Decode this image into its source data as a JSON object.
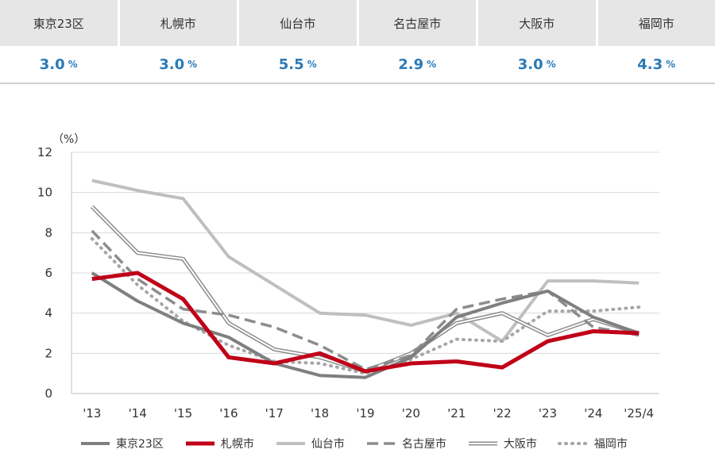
{
  "summary": [
    {
      "city": "東京23区",
      "value": "3.0",
      "unit": "%"
    },
    {
      "city": "札幌市",
      "value": "3.0",
      "unit": "%"
    },
    {
      "city": "仙台市",
      "value": "5.5",
      "unit": "%"
    },
    {
      "city": "名古屋市",
      "value": "2.9",
      "unit": "%"
    },
    {
      "city": "大阪市",
      "value": "3.0",
      "unit": "%"
    },
    {
      "city": "福岡市",
      "value": "4.3",
      "unit": "%"
    }
  ],
  "chart_data": {
    "type": "line",
    "y_unit_label": "（%）",
    "ylim": [
      0,
      12
    ],
    "yticks": [
      0,
      2,
      4,
      6,
      8,
      10,
      12
    ],
    "grid": true,
    "legend_position": "bottom",
    "categories": [
      "'13",
      "'14",
      "'15",
      "'16",
      "'17",
      "'18",
      "'19",
      "'20",
      "'21",
      "'22",
      "'23",
      "'24",
      "'25/4"
    ],
    "series": [
      {
        "name": "東京23区",
        "color": "#7f7f7f",
        "style": "solid-thick",
        "values": [
          6.0,
          4.6,
          3.5,
          2.8,
          1.5,
          0.9,
          0.8,
          1.8,
          3.8,
          4.5,
          5.1,
          3.8,
          3.0
        ]
      },
      {
        "name": "札幌市",
        "color": "#c00018",
        "style": "solid-bold",
        "values": [
          5.7,
          6.0,
          4.7,
          1.8,
          1.5,
          2.0,
          1.1,
          1.5,
          1.6,
          1.3,
          2.6,
          3.1,
          3.0
        ]
      },
      {
        "name": "仙台市",
        "color": "#bfbfbf",
        "style": "solid-thick",
        "values": [
          10.6,
          10.1,
          9.7,
          6.8,
          5.4,
          4.0,
          3.9,
          3.4,
          4.0,
          2.6,
          5.6,
          5.6,
          5.5
        ]
      },
      {
        "name": "名古屋市",
        "color": "#8c8c8c",
        "style": "dashed",
        "values": [
          8.1,
          5.7,
          4.2,
          3.9,
          3.3,
          2.4,
          1.2,
          1.9,
          4.2,
          4.7,
          5.1,
          3.3,
          2.9
        ]
      },
      {
        "name": "大阪市",
        "color": "#8c8c8c",
        "style": "double",
        "values": [
          9.3,
          7.0,
          6.7,
          3.5,
          2.2,
          1.8,
          1.1,
          2.0,
          3.5,
          4.0,
          2.9,
          3.7,
          3.0
        ]
      },
      {
        "name": "福岡市",
        "color": "#a6a6a6",
        "style": "dotted",
        "values": [
          7.7,
          5.4,
          3.6,
          2.4,
          1.6,
          1.5,
          1.0,
          1.7,
          2.7,
          2.6,
          4.1,
          4.1,
          4.3
        ]
      }
    ]
  }
}
